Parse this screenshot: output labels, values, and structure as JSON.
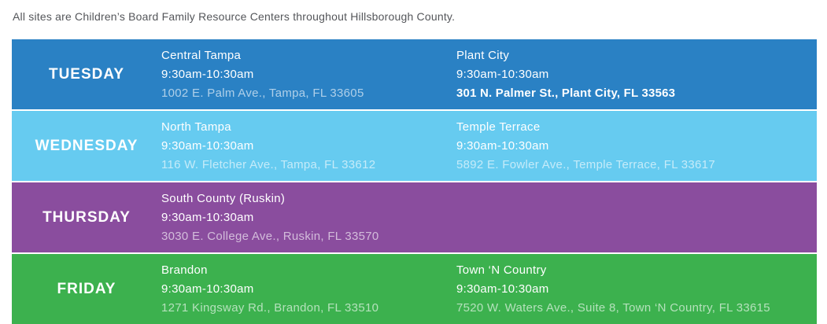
{
  "intro": {
    "text": "All sites are Children’s Board Family Resource Centers throughout Hillsborough County."
  },
  "colors": {
    "tuesday_blue": "#2A81C4",
    "wednesday_light_blue": "#66CBF0",
    "thursday_purple": "#8A4D9E",
    "friday_green": "#3CB14E",
    "intro_text_gray": "#54565A",
    "row_separator_white": "#FFFFFF",
    "row_text_white": "#FFFFFF"
  },
  "schedule": {
    "rows": [
      {
        "day": "TUESDAY",
        "color": "#2A81C4",
        "sites": [
          {
            "name": "Central Tampa",
            "time": "9:30am-10:30am",
            "address": "1002 E. Palm Ave., Tampa, FL 33605",
            "address_emphasis": false
          },
          {
            "name": "Plant City",
            "time": "9:30am-10:30am",
            "address": "301 N. Palmer St., Plant City, FL 33563",
            "address_emphasis": true
          }
        ]
      },
      {
        "day": "WEDNESDAY",
        "color": "#66CBF0",
        "sites": [
          {
            "name": "North Tampa",
            "time": "9:30am-10:30am",
            "address": "116 W. Fletcher Ave., Tampa, FL 33612",
            "address_emphasis": false
          },
          {
            "name": "Temple Terrace",
            "time": "9:30am-10:30am",
            "address": "5892 E. Fowler Ave., Temple Terrace, FL 33617",
            "address_emphasis": false
          }
        ]
      },
      {
        "day": "THURSDAY",
        "color": "#8A4D9E",
        "sites": [
          {
            "name": "South County (Ruskin)",
            "time": "9:30am-10:30am",
            "address": "3030 E. College Ave., Ruskin, FL 33570",
            "address_emphasis": false
          }
        ]
      },
      {
        "day": "FRIDAY",
        "color": "#3CB14E",
        "sites": [
          {
            "name": "Brandon",
            "time": "9:30am-10:30am",
            "address": "1271 Kingsway Rd., Brandon, FL 33510",
            "address_emphasis": false
          },
          {
            "name": "Town ‘N Country",
            "time": "9:30am-10:30am",
            "address": "7520 W. Waters Ave., Suite 8, Town ‘N Country, FL 33615",
            "address_emphasis": false
          }
        ]
      }
    ]
  }
}
